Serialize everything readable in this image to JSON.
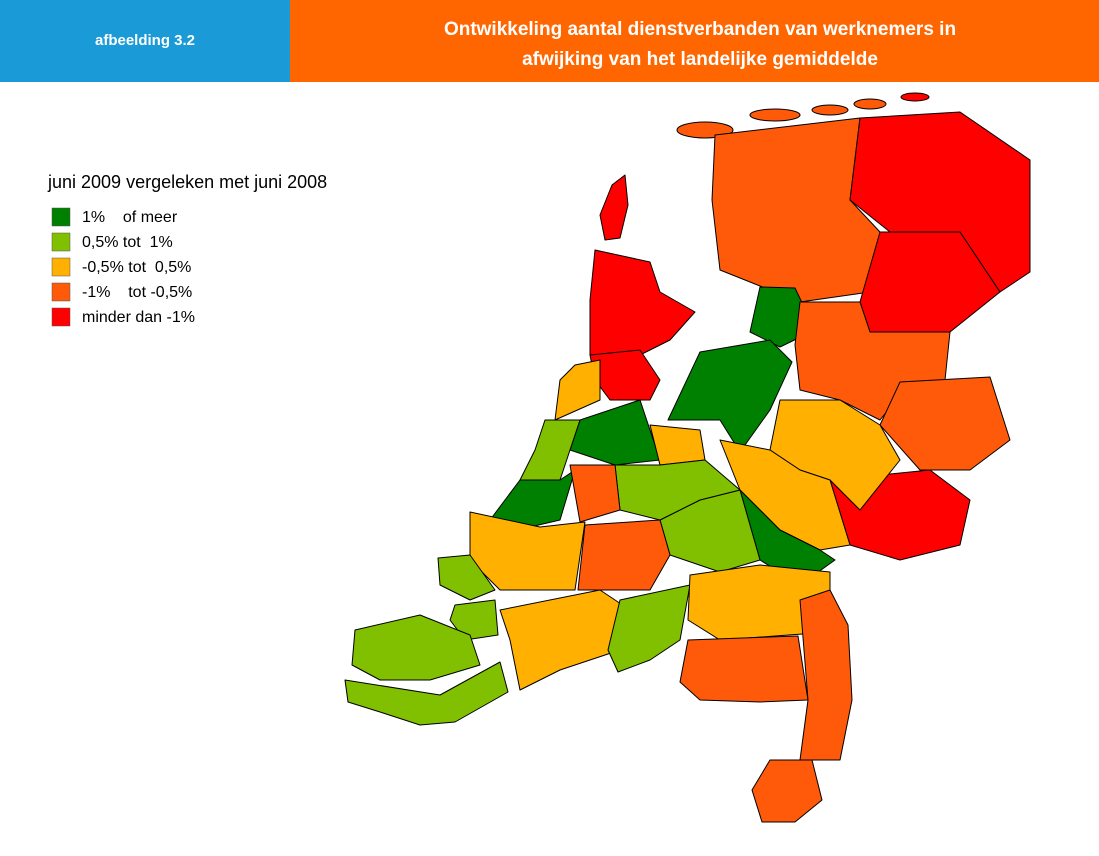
{
  "header": {
    "label": "afbeelding 3.2",
    "title_lines": [
      "Ontwikkeling aantal dienstverbanden van werknemers in",
      "afwijking van het landelijke gemiddelde"
    ]
  },
  "legend": {
    "title": "juni 2009 vergeleken met juni 2008",
    "items": [
      {
        "label": "1%    of meer",
        "color": "#008000"
      },
      {
        "label": "0,5% tot  1%",
        "color": "#80c000"
      },
      {
        "label": "-0,5% tot  0,5%",
        "color": "#ffb000"
      },
      {
        "label": "-1%    tot -0,5%",
        "color": "#ff5a0a"
      },
      {
        "label": "minder dan -1%",
        "color": "#ff0000"
      }
    ]
  }
}
